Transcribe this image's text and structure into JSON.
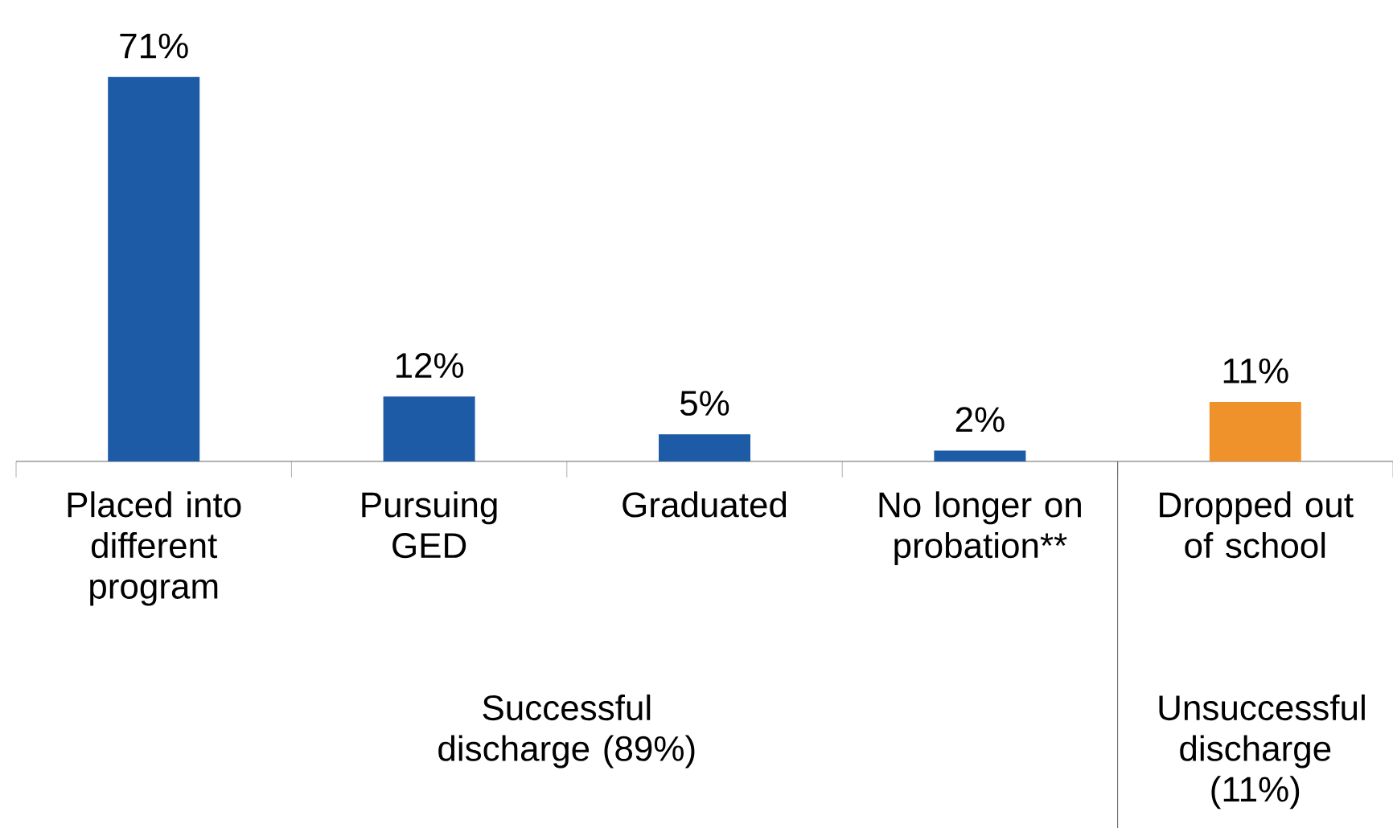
{
  "chart_data": {
    "type": "bar",
    "categories": [
      "Placed into different program",
      "Pursuing GED",
      "Graduated",
      "No longer on probation**",
      "Dropped out of school"
    ],
    "values": [
      71,
      12,
      5,
      2,
      11
    ],
    "colors": [
      "#1d5ba6",
      "#1d5ba6",
      "#1d5ba6",
      "#1d5ba6",
      "#f0922b"
    ],
    "value_labels": [
      "71%",
      "12%",
      "5%",
      "2%",
      "11%"
    ],
    "annotations": [
      "Successful discharge (89%)",
      "Unsuccessful discharge (11%)"
    ]
  }
}
